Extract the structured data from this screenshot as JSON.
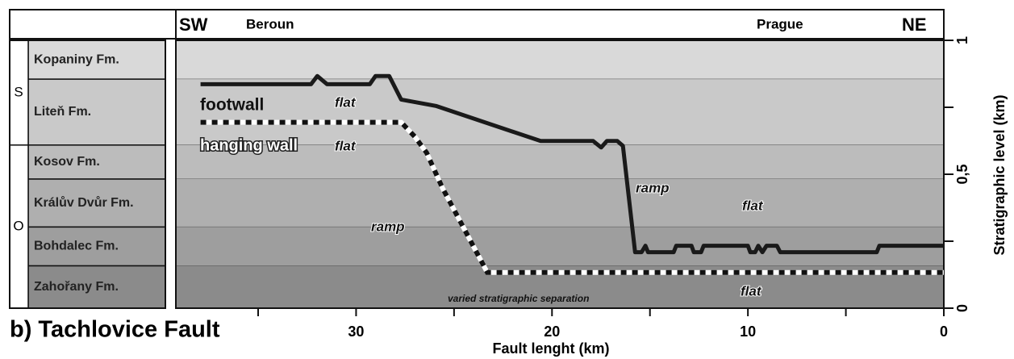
{
  "chart_data": {
    "type": "line",
    "title": "b)   Tachlovice Fault",
    "x_label": "Fault lenght (km)",
    "y_label": "Stratigraphic level (km)",
    "header_left": "SW",
    "header_right": "NE",
    "places": [
      "Beroun",
      "Prague"
    ],
    "xlim": [
      39.2,
      0
    ],
    "xticks": [
      30,
      20,
      10,
      0
    ],
    "xminor": [
      35,
      25,
      15,
      5
    ],
    "ylim": [
      0,
      1
    ],
    "yticks": [
      0,
      {
        "value": 0.5,
        "label": "0,5"
      },
      1
    ],
    "yminor": [
      0.25,
      0.75
    ],
    "formations": [
      {
        "name": "Kopaniny Fm.",
        "base": 0.855,
        "color": "#d9d9d9"
      },
      {
        "name": "Liteň Fm.",
        "base": 0.609,
        "color": "#c9c9c9"
      },
      {
        "name": "Kosov Fm.",
        "base": 0.482,
        "color": "#bcbcbc"
      },
      {
        "name": "Králův Dvůr Fm.",
        "base": 0.303,
        "color": "#afafaf"
      },
      {
        "name": "Bohdalec Fm.",
        "base": 0.158,
        "color": "#9e9e9e"
      },
      {
        "name": "Zahořany Fm.",
        "base": 0,
        "color": "#8b8b8b"
      }
    ],
    "systems": [
      {
        "label": "S",
        "base": 0.609
      },
      {
        "label": "O",
        "base": 0
      }
    ],
    "series": [
      {
        "name": "footwall",
        "color": "#1a1a1a",
        "dashed": false,
        "x": [
          37.94,
          32.3,
          31.98,
          31.48,
          29.3,
          29.01,
          28.31,
          27.7,
          25.93,
          20.58,
          17.9,
          17.49,
          17.2,
          16.67,
          16.38,
          15.76,
          15.43,
          15.23,
          15.1,
          13.79,
          13.66,
          12.88,
          12.76,
          12.39,
          12.26,
          10.0,
          9.88,
          9.63,
          9.47,
          9.26,
          9.05,
          8.52,
          8.35,
          3.42,
          3.29,
          0
        ],
        "values": [
          0.836,
          0.836,
          0.867,
          0.836,
          0.836,
          0.867,
          0.867,
          0.779,
          0.755,
          0.624,
          0.624,
          0.6,
          0.624,
          0.624,
          0.606,
          0.209,
          0.209,
          0.233,
          0.209,
          0.209,
          0.233,
          0.233,
          0.209,
          0.209,
          0.233,
          0.233,
          0.209,
          0.209,
          0.233,
          0.209,
          0.233,
          0.233,
          0.209,
          0.209,
          0.233,
          0.233
        ]
      },
      {
        "name": "hanging wall",
        "color": "#111111",
        "dashed": true,
        "x": [
          37.94,
          27.7,
          27.0,
          26.4,
          25.6,
          23.3,
          0
        ],
        "values": [
          0.694,
          0.694,
          0.64,
          0.58,
          0.45,
          0.133,
          0.133
        ]
      }
    ],
    "annotations": [
      "flat",
      "flat",
      "ramp",
      "ramp",
      "flat",
      "flat",
      "varied stratigraphic separation"
    ]
  }
}
